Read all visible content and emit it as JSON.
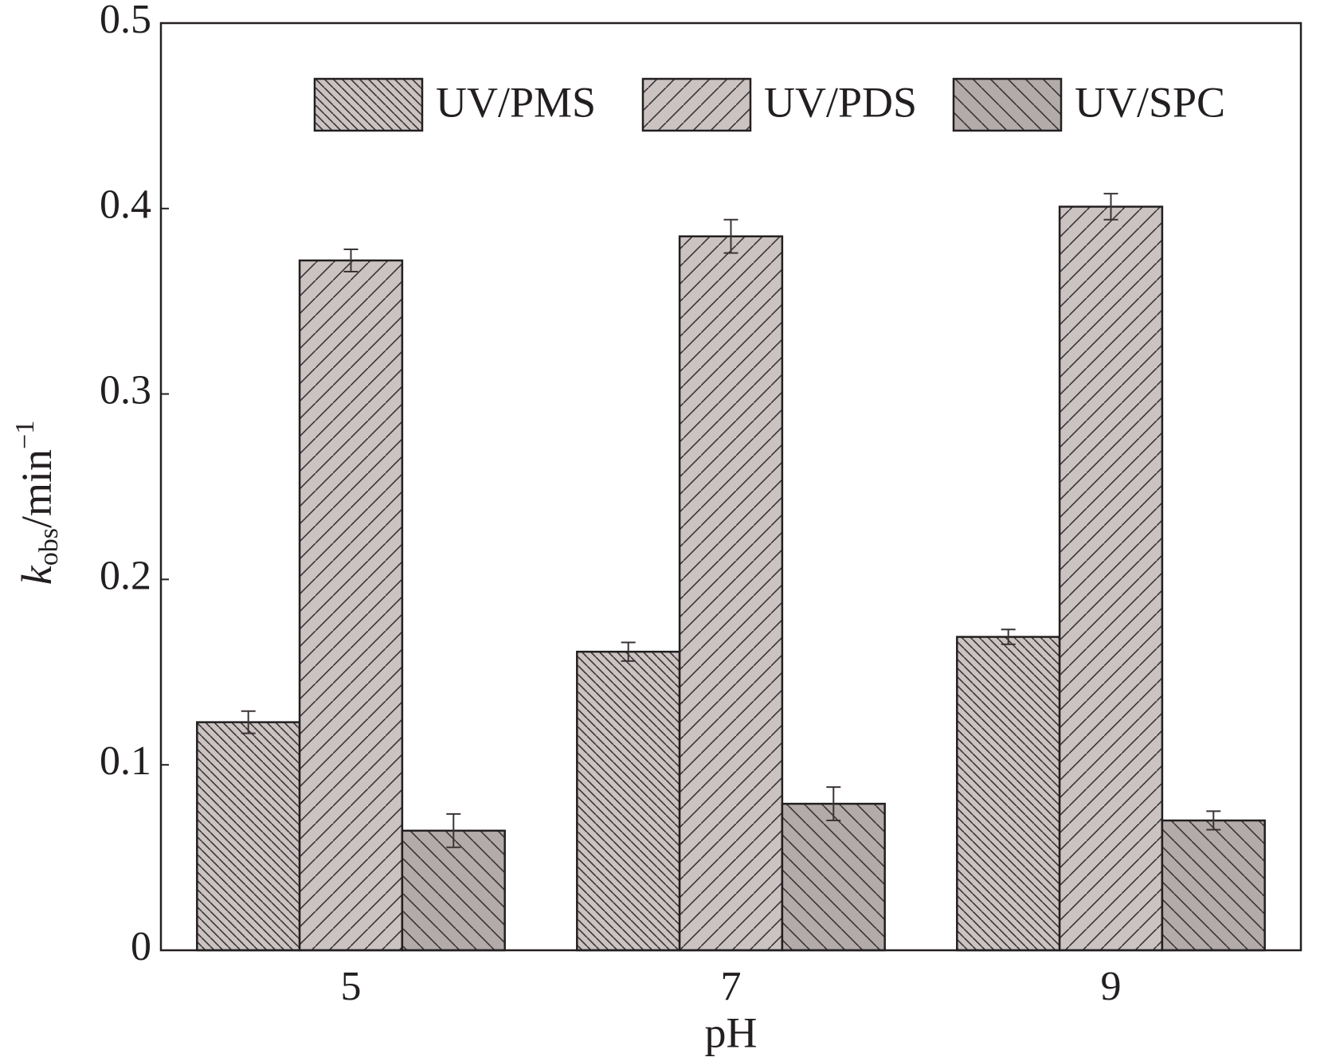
{
  "chart_data": {
    "type": "bar",
    "xlabel": "pH",
    "ylabel_parts": [
      "k",
      "obs",
      "/min",
      "−1"
    ],
    "categories": [
      "5",
      "7",
      "9"
    ],
    "series": [
      {
        "name": "UV/PMS",
        "color": "#cbc3c2",
        "hatch": "\\\\\\\\",
        "values": [
          0.123,
          0.161,
          0.169
        ],
        "errors": [
          0.006,
          0.005,
          0.004
        ]
      },
      {
        "name": "UV/PDS",
        "color": "#cbc3c2",
        "hatch": "//",
        "values": [
          0.372,
          0.385,
          0.401
        ],
        "errors": [
          0.006,
          0.009,
          0.007
        ]
      },
      {
        "name": "UV/SPC",
        "color": "#b3abaa",
        "hatch": "\\\\",
        "values": [
          0.0645,
          0.079,
          0.07
        ],
        "errors": [
          0.009,
          0.009,
          0.005
        ]
      }
    ],
    "ylim": [
      0,
      0.5
    ],
    "yticks": [
      0,
      0.1,
      0.2,
      0.3,
      0.4,
      0.5
    ],
    "legend": "upper-right"
  }
}
